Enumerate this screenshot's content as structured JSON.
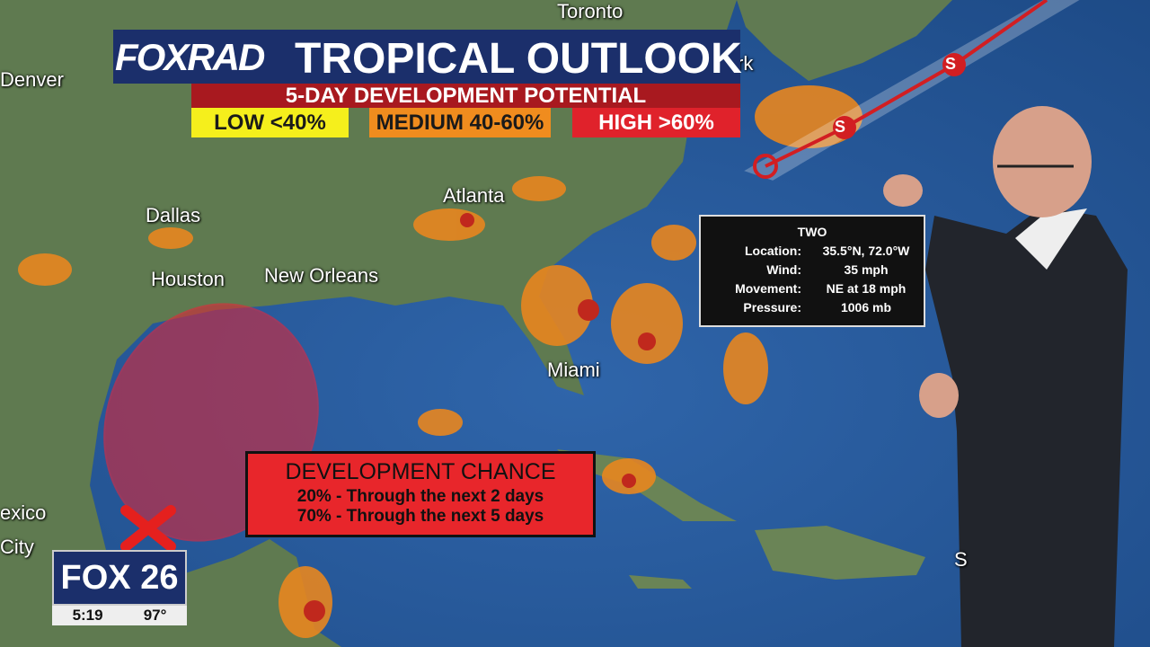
{
  "header": {
    "logo": "FOXRAD",
    "title": "TROPICAL OUTLOOK",
    "subtitle": "5-DAY DEVELOPMENT POTENTIAL",
    "legend": [
      "LOW <40%",
      "MEDIUM 40-60%",
      "HIGH >60%"
    ]
  },
  "map": {
    "cities": [
      "Toronto",
      "Denver",
      "rk",
      "Atlanta",
      "Dallas",
      "Houston",
      "New Orleans",
      "Miami",
      "exico",
      "City",
      "S"
    ],
    "track_markers": [
      "S",
      "S"
    ]
  },
  "info_box": {
    "name": "TWO",
    "rows": [
      {
        "label": "Location:",
        "value": "35.5°N, 72.0°W"
      },
      {
        "label": "Wind:",
        "value": "35 mph"
      },
      {
        "label": "Movement:",
        "value": "NE at 18 mph"
      },
      {
        "label": "Pressure:",
        "value": "1006 mb"
      }
    ]
  },
  "development_box": {
    "title": "DEVELOPMENT CHANCE",
    "lines": [
      "20% - Through the next 2 days",
      "70% - Through the next 5 days"
    ]
  },
  "station_bug": {
    "logo": "FOX 26",
    "time": "5:19",
    "temp": "97°"
  }
}
